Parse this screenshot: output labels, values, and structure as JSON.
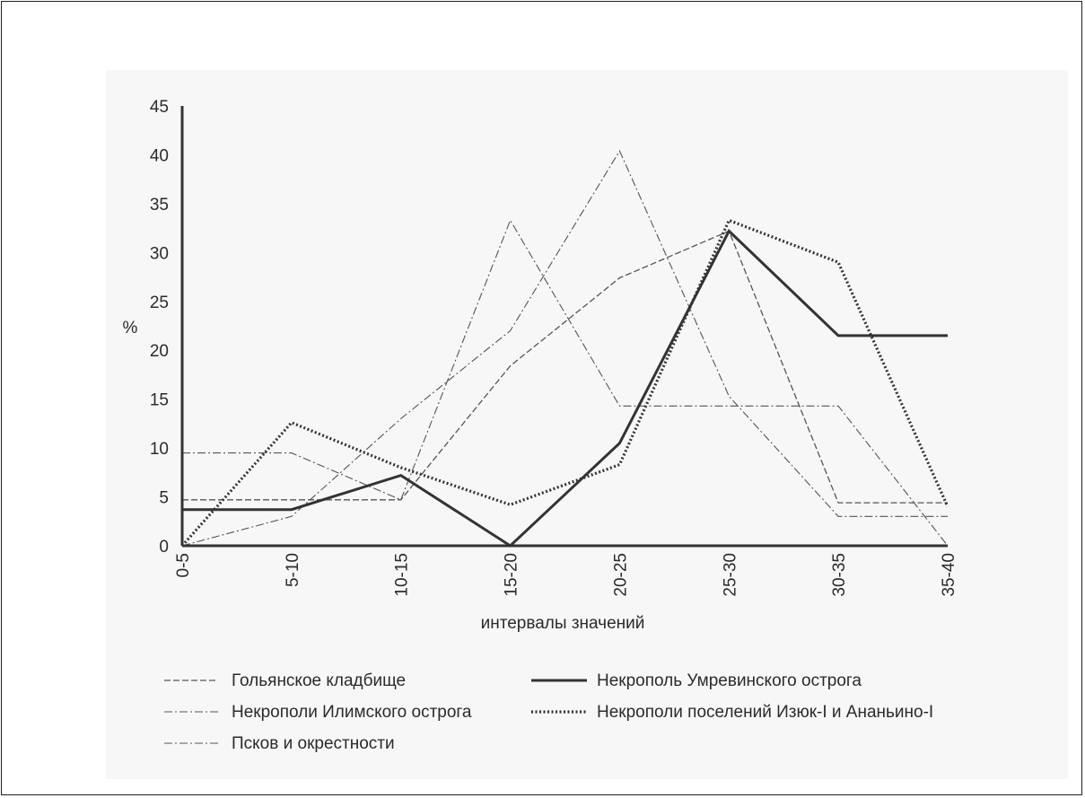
{
  "chart_data": {
    "type": "line",
    "title": "",
    "ylabel": "%",
    "xlabel": "интервалы значений",
    "categories": [
      "0-5",
      "5-10",
      "10-15",
      "15-20",
      "20-25",
      "25-30",
      "30-35",
      "35-40"
    ],
    "yticks": [
      0,
      5,
      10,
      15,
      20,
      25,
      30,
      35,
      40,
      45
    ],
    "ylim": [
      0,
      45
    ],
    "grid": false,
    "legend_position": "bottom",
    "series": [
      {
        "name": "Гольянское кладбище",
        "style": "dashed-thin",
        "color": "#555555",
        "values": [
          4.7,
          4.7,
          4.7,
          18.4,
          27.4,
          32.2,
          4.4,
          4.4
        ]
      },
      {
        "name": "Некрополи Илимского острога",
        "style": "dashdot-thin",
        "color": "#555555",
        "values": [
          0,
          3.0,
          13.0,
          22.0,
          40.4,
          15.3,
          3.0,
          3.0
        ]
      },
      {
        "name": "Псков и окрестности",
        "style": "dashdot-thin",
        "color": "#555555",
        "values": [
          9.5,
          9.5,
          4.7,
          33.3,
          14.3,
          14.3,
          14.3,
          0
        ]
      },
      {
        "name": "Некрополь Умревинского острога",
        "style": "solid-thick",
        "color": "#333333",
        "values": [
          3.7,
          3.7,
          7.2,
          0,
          10.5,
          32.2,
          21.5,
          21.5
        ]
      },
      {
        "name": "Некрополи поселений Изюк-I и Ананьино-I",
        "style": "dotted-thick",
        "color": "#333333",
        "values": [
          0,
          12.6,
          8.0,
          4.2,
          8.3,
          33.3,
          29.0,
          4.0
        ]
      }
    ]
  }
}
